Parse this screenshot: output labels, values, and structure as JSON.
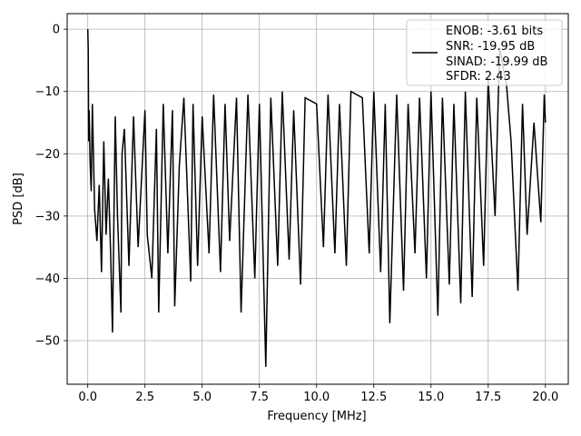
{
  "chart_data": {
    "type": "line",
    "title": "",
    "xlabel": "Frequency [MHz]",
    "ylabel": "PSD [dB]",
    "xlim": [
      -0.9,
      21.0
    ],
    "ylim": [
      -57,
      2.5
    ],
    "grid": true,
    "legend_position": "top-right",
    "xticks": [
      0.0,
      2.5,
      5.0,
      7.5,
      10.0,
      12.5,
      15.0,
      17.5,
      20.0
    ],
    "xtick_labels": [
      "0.0",
      "2.5",
      "5.0",
      "7.5",
      "10.0",
      "12.5",
      "15.0",
      "17.5",
      "20.0"
    ],
    "yticks": [
      0,
      -10,
      -20,
      -30,
      -40,
      -50
    ],
    "ytick_labels": [
      "0",
      "−10",
      "−20",
      "−30",
      "−40",
      "−50"
    ],
    "series": [
      {
        "name": "",
        "color": "#000000",
        "x": [
          0.0,
          0.02,
          0.04,
          0.06,
          0.1,
          0.15,
          0.2,
          0.3,
          0.4,
          0.5,
          0.6,
          0.7,
          0.8,
          0.9,
          1.0,
          1.08,
          1.2,
          1.3,
          1.45,
          1.5,
          1.6,
          1.8,
          2.0,
          2.2,
          2.5,
          2.6,
          2.8,
          3.0,
          3.1,
          3.3,
          3.5,
          3.7,
          3.8,
          4.0,
          4.2,
          4.5,
          4.6,
          4.8,
          5.0,
          5.3,
          5.5,
          5.8,
          6.0,
          6.2,
          6.5,
          6.7,
          7.0,
          7.3,
          7.5,
          7.78,
          8.0,
          8.3,
          8.5,
          8.8,
          9.0,
          9.3,
          9.5,
          10.0,
          10.3,
          10.5,
          10.8,
          11.0,
          11.3,
          11.5,
          12.0,
          12.3,
          12.5,
          12.8,
          13.0,
          13.2,
          13.5,
          13.8,
          14.0,
          14.3,
          14.5,
          14.8,
          15.0,
          15.3,
          15.5,
          15.8,
          16.0,
          16.3,
          16.5,
          16.8,
          17.0,
          17.3,
          17.5,
          17.8,
          18.0,
          18.3,
          18.5,
          18.8,
          19.0,
          19.2,
          19.5,
          19.8,
          19.95,
          20.0
        ],
        "y": [
          0.0,
          -3.0,
          -18.0,
          -13.0,
          -21.0,
          -26.0,
          -12.0,
          -29.0,
          -34.0,
          -25.0,
          -39.0,
          -18.0,
          -33.0,
          -24.0,
          -36.0,
          -48.7,
          -14.0,
          -30.0,
          -45.5,
          -20.0,
          -16.0,
          -38.0,
          -14.0,
          -35.0,
          -13.0,
          -33.0,
          -40.0,
          -16.0,
          -45.5,
          -12.0,
          -36.0,
          -13.0,
          -44.5,
          -22.0,
          -11.0,
          -40.5,
          -12.0,
          -38.0,
          -14.0,
          -36.0,
          -10.5,
          -39.0,
          -12.0,
          -34.0,
          -11.0,
          -45.5,
          -10.5,
          -40.0,
          -12.0,
          -54.2,
          -11.0,
          -38.0,
          -10.0,
          -37.0,
          -13.0,
          -41.0,
          -11.0,
          -12.0,
          -35.0,
          -10.5,
          -36.0,
          -12.0,
          -38.0,
          -10.0,
          -11.0,
          -36.0,
          -10.0,
          -39.0,
          -12.0,
          -47.2,
          -10.5,
          -42.0,
          -12.0,
          -36.0,
          -11.0,
          -40.0,
          -10.0,
          -46.0,
          -11.0,
          -41.0,
          -12.0,
          -44.0,
          -10.0,
          -43.0,
          -11.0,
          -38.0,
          -8.0,
          -30.0,
          -3.0,
          -9.0,
          -18.0,
          -42.0,
          -12.0,
          -33.0,
          -15.0,
          -31.0,
          -10.5,
          -15.0
        ]
      }
    ],
    "legend_entries": [
      "ENOB: -3.61 bits",
      "SNR: -19.95 dB",
      "SINAD: -19.99 dB",
      "SFDR: 2.43"
    ]
  }
}
